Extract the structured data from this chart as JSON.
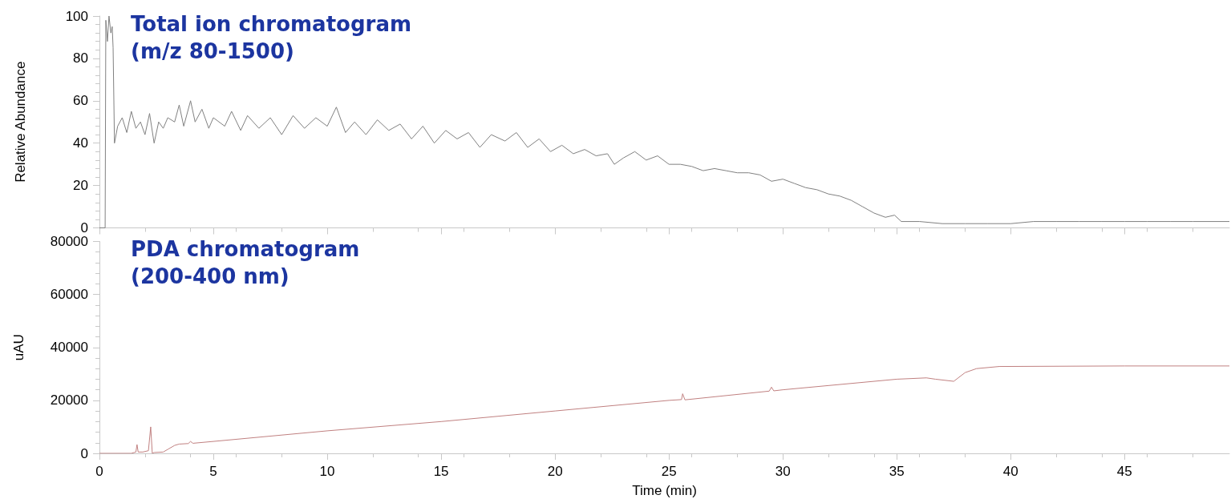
{
  "chart_data": [
    {
      "type": "line",
      "title": "Total ion chromatogram",
      "subtitle": "(m/z 80-1500)",
      "ylabel": "Relative Abundance",
      "tick_labels": "y",
      "x": [
        0,
        0.25,
        0.28,
        0.35,
        0.42,
        0.5,
        0.56,
        0.6,
        0.66,
        0.8,
        1.0,
        1.2,
        1.4,
        1.6,
        1.8,
        2.0,
        2.2,
        2.4,
        2.6,
        2.8,
        3.0,
        3.3,
        3.5,
        3.7,
        4.0,
        4.2,
        4.5,
        4.8,
        5.0,
        5.5,
        5.8,
        6.2,
        6.5,
        7.0,
        7.5,
        8.0,
        8.5,
        9.0,
        9.5,
        10.0,
        10.4,
        10.8,
        11.2,
        11.7,
        12.2,
        12.7,
        13.2,
        13.7,
        14.2,
        14.7,
        15.2,
        15.7,
        16.2,
        16.7,
        17.2,
        17.8,
        18.3,
        18.8,
        19.3,
        19.8,
        20.3,
        20.8,
        21.3,
        21.8,
        22.3,
        22.6,
        23.0,
        23.5,
        24.0,
        24.5,
        25.0,
        25.5,
        26.0,
        26.5,
        27.0,
        27.5,
        28.0,
        28.5,
        29.0,
        29.5,
        30.0,
        30.5,
        31.0,
        31.5,
        32.0,
        32.5,
        33.0,
        33.5,
        34.0,
        34.5,
        34.9,
        35.2,
        36,
        37,
        38,
        39,
        40,
        41,
        42,
        43,
        44,
        45,
        46,
        47,
        48,
        49.6
      ],
      "series": [
        {
          "color": "#808080",
          "values": [
            0,
            0,
            98,
            88,
            100,
            92,
            95,
            85,
            40,
            48,
            52,
            45,
            55,
            47,
            50,
            44,
            54,
            40,
            50,
            47,
            52,
            50,
            58,
            48,
            60,
            50,
            56,
            47,
            52,
            48,
            55,
            46,
            53,
            47,
            52,
            44,
            53,
            47,
            52,
            48,
            57,
            45,
            50,
            44,
            51,
            46,
            49,
            42,
            48,
            40,
            46,
            42,
            45,
            38,
            44,
            41,
            45,
            38,
            42,
            36,
            39,
            35,
            37,
            34,
            35,
            30,
            33,
            36,
            32,
            34,
            30,
            30,
            29,
            27,
            28,
            27,
            26,
            26,
            25,
            22,
            23,
            21,
            19,
            18,
            16,
            15,
            13,
            10,
            7,
            5,
            6,
            3,
            3,
            2,
            2,
            2,
            2,
            3,
            3,
            3,
            3,
            3,
            3,
            3,
            3,
            3
          ]
        }
      ],
      "xlim": [
        0,
        49.6
      ],
      "xticks": [
        0,
        5,
        10,
        15,
        20,
        25,
        30,
        35,
        40,
        45
      ],
      "ylim": [
        0,
        100
      ],
      "yticks": [
        0,
        20,
        40,
        60,
        80,
        100
      ]
    },
    {
      "type": "line",
      "title": "PDA chromatogram",
      "subtitle": "(200-400 nm)",
      "xlabel": "Time (min)",
      "ylabel": "uAU",
      "x": [
        0,
        1.4,
        1.6,
        1.65,
        1.7,
        1.9,
        2.15,
        2.25,
        2.32,
        2.4,
        2.8,
        3.0,
        3.3,
        3.5,
        3.9,
        4.0,
        4.1,
        5,
        10,
        15,
        20,
        25,
        25.55,
        25.6,
        25.7,
        29.4,
        29.5,
        29.6,
        30,
        35,
        36.3,
        36.7,
        37.5,
        38,
        38.5,
        39.5,
        45,
        49.6
      ],
      "series": [
        {
          "color": "#c08080",
          "values": [
            0,
            0,
            500,
            3300,
            500,
            500,
            1000,
            10000,
            0,
            300,
            500,
            1500,
            3000,
            3500,
            3700,
            4500,
            3800,
            4500,
            8500,
            12000,
            16000,
            20000,
            20300,
            22500,
            20200,
            23500,
            25000,
            23600,
            24000,
            28000,
            28500,
            28000,
            27200,
            30500,
            32000,
            32800,
            33000,
            33000
          ]
        }
      ],
      "xlim": [
        0,
        49.6
      ],
      "xticks": [
        0,
        5,
        10,
        15,
        20,
        25,
        30,
        35,
        40,
        45
      ],
      "ylim": [
        0,
        80000
      ],
      "yticks": [
        0,
        20000,
        40000,
        60000,
        80000
      ]
    }
  ]
}
